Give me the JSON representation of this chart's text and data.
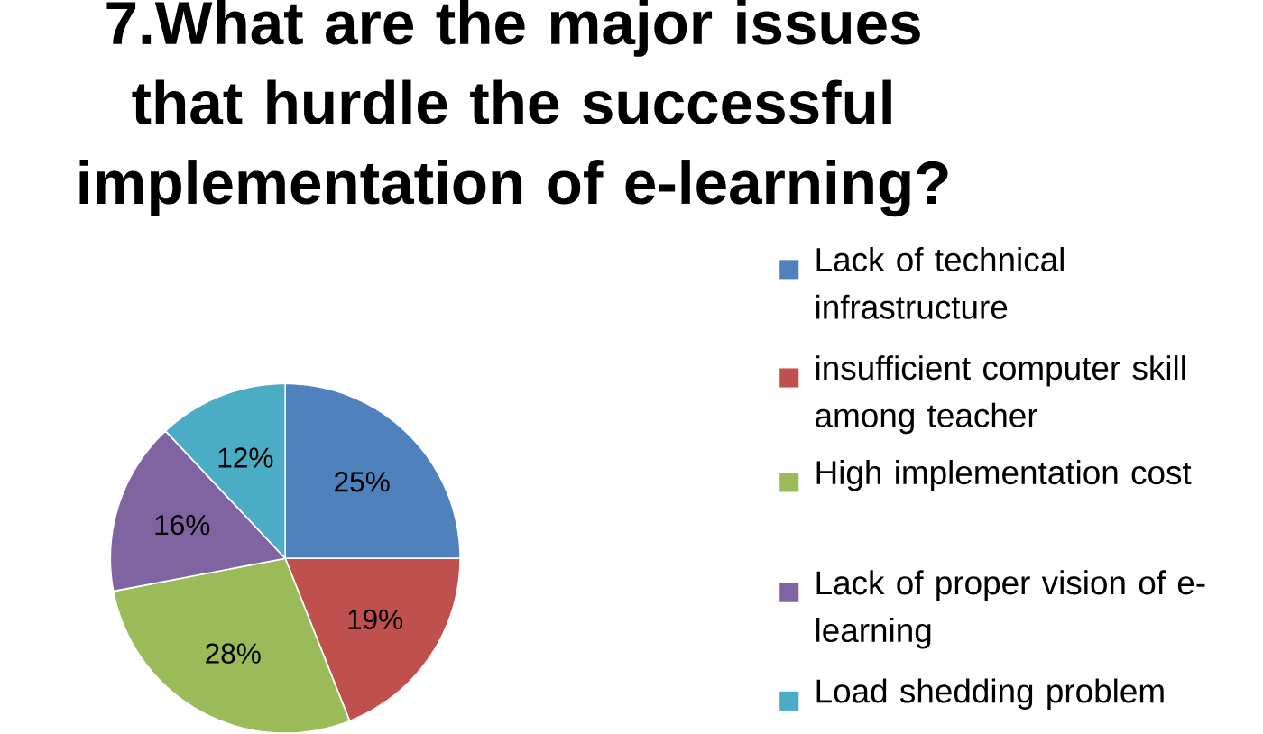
{
  "chart_data": {
    "type": "pie",
    "title": "7.What are the major issues that hurdle the successful implementation of e-learning?",
    "categories": [
      "Lack of technical infrastructure",
      "insufficient computer skill among teacher",
      "High implementation cost",
      "Lack of proper vision of e-learning",
      "Load shedding problem"
    ],
    "values": [
      25,
      19,
      28,
      16,
      12
    ],
    "colors": [
      "#4f81bd",
      "#c0504d",
      "#9bbb59",
      "#8064a2",
      "#4bacc6"
    ],
    "value_labels": [
      "25%",
      "19%",
      "28%",
      "16%",
      "12%"
    ],
    "legend": "right"
  }
}
